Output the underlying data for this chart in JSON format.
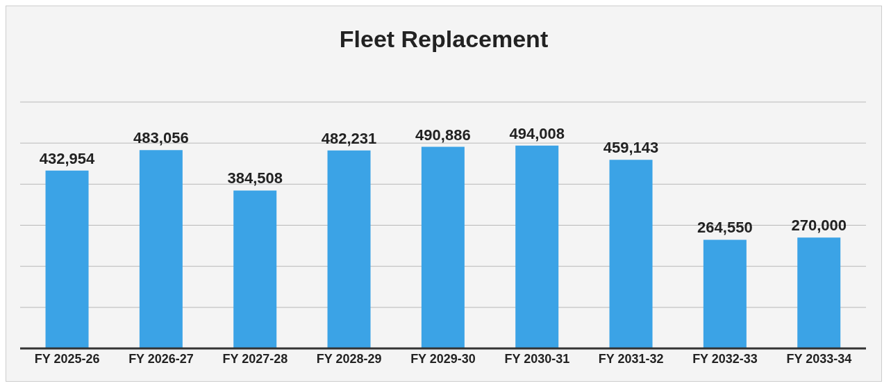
{
  "chart_data": {
    "type": "bar",
    "title": "Fleet Replacement",
    "categories": [
      "FY 2025-26",
      "FY 2026-27",
      "FY 2027-28",
      "FY 2028-29",
      "FY 2029-30",
      "FY 2030-31",
      "FY 2031-32",
      "FY 2032-33",
      "FY 2033-34"
    ],
    "values": [
      432954,
      483056,
      384508,
      482231,
      490886,
      494008,
      459143,
      264550,
      270000
    ],
    "value_labels": [
      "432,954",
      "483,056",
      "384,508",
      "482,231",
      "490,886",
      "494,008",
      "459,143",
      "264,550",
      "270,000"
    ],
    "color": "#3ba3e6",
    "ylim": [
      0,
      600000
    ],
    "yticks": [
      {
        "value": 0,
        "label": null
      },
      {
        "value": 100000,
        "label": null
      },
      {
        "value": 200000,
        "label": null
      },
      {
        "value": 300000,
        "label": null
      },
      {
        "value": 400000,
        "label": null
      },
      {
        "value": 500000,
        "label": null
      },
      {
        "value": 600000,
        "label": null
      }
    ],
    "grid": "y",
    "tick_labels": "x"
  }
}
